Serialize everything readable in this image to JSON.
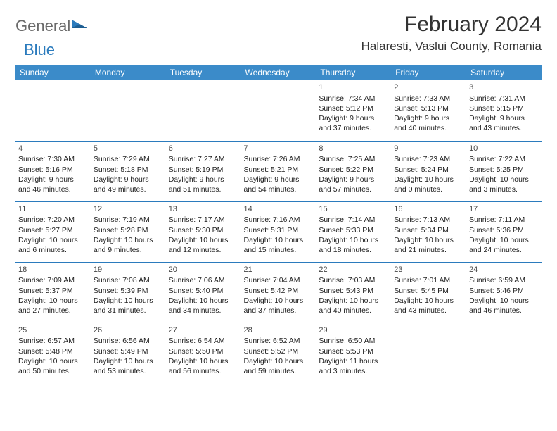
{
  "logo": {
    "part1": "General",
    "part2": "Blue"
  },
  "title": "February 2024",
  "location": "Halaresti, Vaslui County, Romania",
  "colors": {
    "header_bg": "#3b8bc9",
    "rule": "#2b7bbd",
    "text": "#222",
    "logo_gray": "#6a6a6a",
    "logo_blue": "#2b7bbd",
    "bg": "#ffffff"
  },
  "day_headers": [
    "Sunday",
    "Monday",
    "Tuesday",
    "Wednesday",
    "Thursday",
    "Friday",
    "Saturday"
  ],
  "weeks": [
    [
      null,
      null,
      null,
      null,
      {
        "n": "1",
        "sr": "7:34 AM",
        "ss": "5:12 PM",
        "dl": "9 hours and 37 minutes."
      },
      {
        "n": "2",
        "sr": "7:33 AM",
        "ss": "5:13 PM",
        "dl": "9 hours and 40 minutes."
      },
      {
        "n": "3",
        "sr": "7:31 AM",
        "ss": "5:15 PM",
        "dl": "9 hours and 43 minutes."
      }
    ],
    [
      {
        "n": "4",
        "sr": "7:30 AM",
        "ss": "5:16 PM",
        "dl": "9 hours and 46 minutes."
      },
      {
        "n": "5",
        "sr": "7:29 AM",
        "ss": "5:18 PM",
        "dl": "9 hours and 49 minutes."
      },
      {
        "n": "6",
        "sr": "7:27 AM",
        "ss": "5:19 PM",
        "dl": "9 hours and 51 minutes."
      },
      {
        "n": "7",
        "sr": "7:26 AM",
        "ss": "5:21 PM",
        "dl": "9 hours and 54 minutes."
      },
      {
        "n": "8",
        "sr": "7:25 AM",
        "ss": "5:22 PM",
        "dl": "9 hours and 57 minutes."
      },
      {
        "n": "9",
        "sr": "7:23 AM",
        "ss": "5:24 PM",
        "dl": "10 hours and 0 minutes."
      },
      {
        "n": "10",
        "sr": "7:22 AM",
        "ss": "5:25 PM",
        "dl": "10 hours and 3 minutes."
      }
    ],
    [
      {
        "n": "11",
        "sr": "7:20 AM",
        "ss": "5:27 PM",
        "dl": "10 hours and 6 minutes."
      },
      {
        "n": "12",
        "sr": "7:19 AM",
        "ss": "5:28 PM",
        "dl": "10 hours and 9 minutes."
      },
      {
        "n": "13",
        "sr": "7:17 AM",
        "ss": "5:30 PM",
        "dl": "10 hours and 12 minutes."
      },
      {
        "n": "14",
        "sr": "7:16 AM",
        "ss": "5:31 PM",
        "dl": "10 hours and 15 minutes."
      },
      {
        "n": "15",
        "sr": "7:14 AM",
        "ss": "5:33 PM",
        "dl": "10 hours and 18 minutes."
      },
      {
        "n": "16",
        "sr": "7:13 AM",
        "ss": "5:34 PM",
        "dl": "10 hours and 21 minutes."
      },
      {
        "n": "17",
        "sr": "7:11 AM",
        "ss": "5:36 PM",
        "dl": "10 hours and 24 minutes."
      }
    ],
    [
      {
        "n": "18",
        "sr": "7:09 AM",
        "ss": "5:37 PM",
        "dl": "10 hours and 27 minutes."
      },
      {
        "n": "19",
        "sr": "7:08 AM",
        "ss": "5:39 PM",
        "dl": "10 hours and 31 minutes."
      },
      {
        "n": "20",
        "sr": "7:06 AM",
        "ss": "5:40 PM",
        "dl": "10 hours and 34 minutes."
      },
      {
        "n": "21",
        "sr": "7:04 AM",
        "ss": "5:42 PM",
        "dl": "10 hours and 37 minutes."
      },
      {
        "n": "22",
        "sr": "7:03 AM",
        "ss": "5:43 PM",
        "dl": "10 hours and 40 minutes."
      },
      {
        "n": "23",
        "sr": "7:01 AM",
        "ss": "5:45 PM",
        "dl": "10 hours and 43 minutes."
      },
      {
        "n": "24",
        "sr": "6:59 AM",
        "ss": "5:46 PM",
        "dl": "10 hours and 46 minutes."
      }
    ],
    [
      {
        "n": "25",
        "sr": "6:57 AM",
        "ss": "5:48 PM",
        "dl": "10 hours and 50 minutes."
      },
      {
        "n": "26",
        "sr": "6:56 AM",
        "ss": "5:49 PM",
        "dl": "10 hours and 53 minutes."
      },
      {
        "n": "27",
        "sr": "6:54 AM",
        "ss": "5:50 PM",
        "dl": "10 hours and 56 minutes."
      },
      {
        "n": "28",
        "sr": "6:52 AM",
        "ss": "5:52 PM",
        "dl": "10 hours and 59 minutes."
      },
      {
        "n": "29",
        "sr": "6:50 AM",
        "ss": "5:53 PM",
        "dl": "11 hours and 3 minutes."
      },
      null,
      null
    ]
  ],
  "labels": {
    "sunrise": "Sunrise: ",
    "sunset": "Sunset: ",
    "daylight": "Daylight: "
  }
}
